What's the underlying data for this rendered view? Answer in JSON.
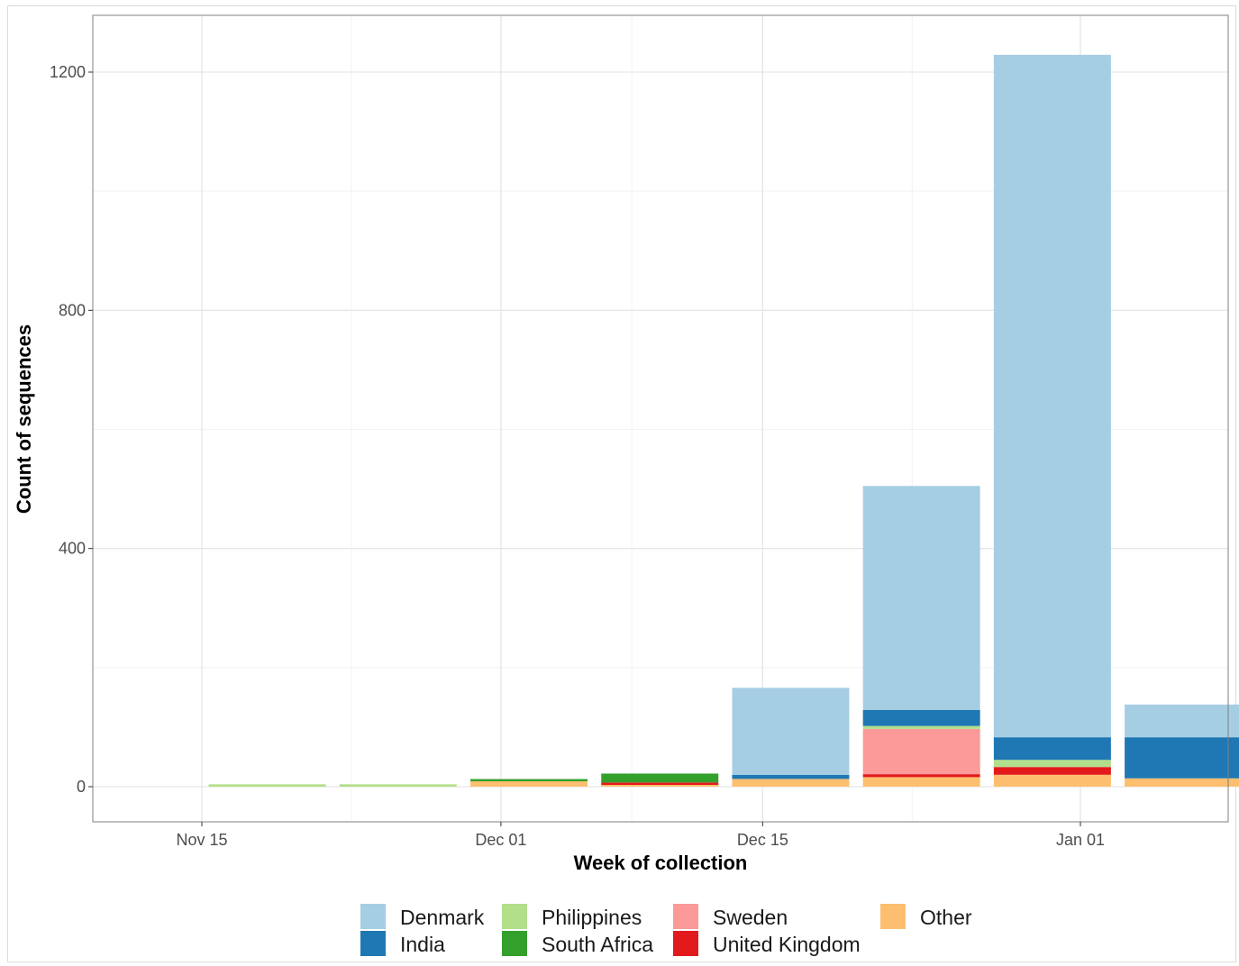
{
  "chart_data": {
    "type": "bar",
    "stacked": true,
    "xlabel": "Week of collection",
    "ylabel": "Count of sequences",
    "x_ticks": [
      "Nov 15",
      "Dec 01",
      "Dec 15",
      "Jan 01"
    ],
    "y_ticks": [
      "0",
      "400",
      "800",
      "1200"
    ],
    "ylim": [
      -60,
      1290
    ],
    "grid": true,
    "legend_position": "bottom",
    "categories": [
      "2021-11-15",
      "2021-11-22",
      "2021-11-29",
      "2021-12-06",
      "2021-12-13",
      "2021-12-20",
      "2021-12-27",
      "2022-01-03"
    ],
    "series": [
      {
        "name": "Other",
        "color": "#fdbf6f",
        "values": [
          0,
          0,
          9,
          3,
          13,
          16,
          20,
          14
        ]
      },
      {
        "name": "United Kingdom",
        "color": "#e31a1c",
        "values": [
          0,
          0,
          0,
          4,
          0,
          5,
          13,
          0
        ]
      },
      {
        "name": "Sweden",
        "color": "#fb9a99",
        "values": [
          0,
          0,
          0,
          0,
          0,
          76,
          0,
          0
        ]
      },
      {
        "name": "South Africa",
        "color": "#33a02c",
        "values": [
          0,
          0,
          3,
          15,
          0,
          0,
          0,
          0
        ]
      },
      {
        "name": "Philippines",
        "color": "#b2df8a",
        "values": [
          4,
          4,
          0,
          0,
          0,
          5,
          12,
          0
        ]
      },
      {
        "name": "India",
        "color": "#1f78b4",
        "values": [
          0,
          0,
          0,
          0,
          7,
          27,
          38,
          69
        ]
      },
      {
        "name": "Denmark",
        "color": "#a6cee3",
        "values": [
          0,
          0,
          0,
          0,
          146,
          376,
          1146,
          55
        ]
      }
    ],
    "legend_entries": [
      "Denmark",
      "India",
      "Philippines",
      "South Africa",
      "Sweden",
      "United Kingdom",
      "Other"
    ]
  }
}
